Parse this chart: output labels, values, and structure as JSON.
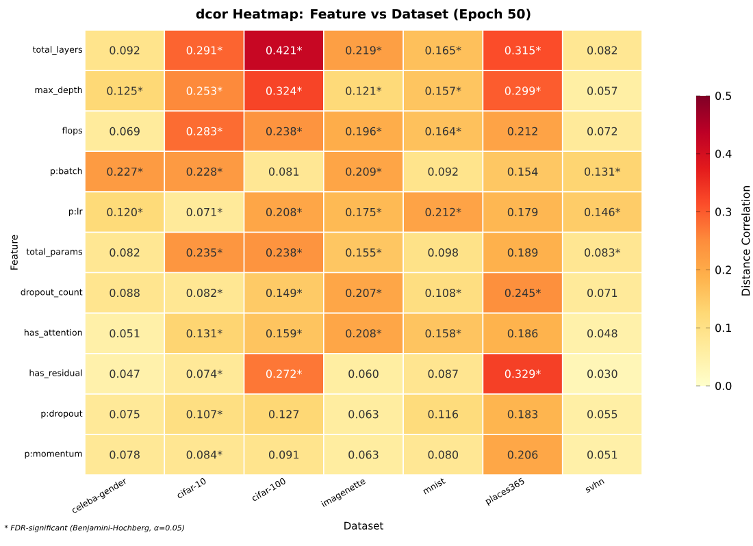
{
  "chart_data": {
    "type": "heatmap",
    "title": "dcor Heatmap: Feature vs Dataset  (Epoch 50)",
    "xlabel": "Dataset",
    "ylabel": "Feature",
    "clabel": "Distance Correlation",
    "categories": [
      "celeba-gender",
      "cifar-10",
      "cifar-100",
      "imagenette",
      "mnist",
      "places365",
      "svhn"
    ],
    "y_categories": [
      "total_layers",
      "max_depth",
      "flops",
      "p:batch",
      "p:lr",
      "total_params",
      "dropout_count",
      "has_attention",
      "has_residual",
      "p:dropout",
      "p:momentum"
    ],
    "cells": [
      [
        0.092,
        0.291,
        0.421,
        0.219,
        0.165,
        0.315,
        0.082
      ],
      [
        0.125,
        0.253,
        0.324,
        0.121,
        0.157,
        0.299,
        0.057
      ],
      [
        0.069,
        0.283,
        0.238,
        0.196,
        0.164,
        0.212,
        0.072
      ],
      [
        0.227,
        0.228,
        0.081,
        0.209,
        0.092,
        0.154,
        0.131
      ],
      [
        0.12,
        0.071,
        0.208,
        0.175,
        0.212,
        0.179,
        0.146
      ],
      [
        0.082,
        0.235,
        0.238,
        0.155,
        0.098,
        0.189,
        0.083
      ],
      [
        0.088,
        0.082,
        0.149,
        0.207,
        0.108,
        0.245,
        0.071
      ],
      [
        0.051,
        0.131,
        0.159,
        0.208,
        0.158,
        0.186,
        0.048
      ],
      [
        0.047,
        0.074,
        0.272,
        0.06,
        0.087,
        0.329,
        0.03
      ],
      [
        0.075,
        0.107,
        0.127,
        0.063,
        0.116,
        0.183,
        0.055
      ],
      [
        0.078,
        0.084,
        0.091,
        0.063,
        0.08,
        0.206,
        0.051
      ]
    ],
    "cell_labels": [
      [
        "0.092",
        "0.291*",
        "0.421*",
        "0.219*",
        "0.165*",
        "0.315*",
        "0.082"
      ],
      [
        "0.125*",
        "0.253*",
        "0.324*",
        "0.121*",
        "0.157*",
        "0.299*",
        "0.057"
      ],
      [
        "0.069",
        "0.283*",
        "0.238*",
        "0.196*",
        "0.164*",
        "0.212",
        "0.072"
      ],
      [
        "0.227*",
        "0.228*",
        "0.081",
        "0.209*",
        "0.092",
        "0.154",
        "0.131*"
      ],
      [
        "0.120*",
        "0.071*",
        "0.208*",
        "0.175*",
        "0.212*",
        "0.179",
        "0.146*"
      ],
      [
        "0.082",
        "0.235*",
        "0.238*",
        "0.155*",
        "0.098",
        "0.189",
        "0.083*"
      ],
      [
        "0.088",
        "0.082*",
        "0.149*",
        "0.207*",
        "0.108*",
        "0.245*",
        "0.071"
      ],
      [
        "0.051",
        "0.131*",
        "0.159*",
        "0.208*",
        "0.158*",
        "0.186",
        "0.048"
      ],
      [
        "0.047",
        "0.074*",
        "0.272*",
        "0.060",
        "0.087",
        "0.329*",
        "0.030"
      ],
      [
        "0.075",
        "0.107*",
        "0.127",
        "0.063",
        "0.116",
        "0.183",
        "0.055"
      ],
      [
        "0.078",
        "0.084*",
        "0.091",
        "0.063",
        "0.080",
        "0.206",
        "0.051"
      ]
    ],
    "clim": [
      0,
      0.5
    ],
    "cticks": [
      {
        "value": 0,
        "label": "0.0"
      },
      0.1,
      0.2,
      0.3,
      0.4,
      0.5
    ],
    "annotations": [
      "* FDR-significant (Benjamini-Hochberg, α=0.05)"
    ]
  }
}
